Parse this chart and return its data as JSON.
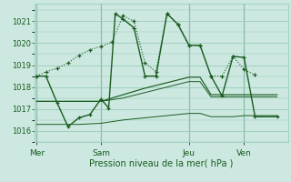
{
  "background_color": "#cce8e0",
  "grid_color": "#99ccbb",
  "line_color": "#1a5c20",
  "ylim": [
    1015.5,
    1021.8
  ],
  "yticks": [
    1016,
    1017,
    1018,
    1019,
    1020,
    1021
  ],
  "xlabel": "Pression niveau de la mer( hPa )",
  "day_labels": [
    "Mer",
    "Sam",
    "Jeu",
    "Ven"
  ],
  "day_positions": [
    0.08,
    3.0,
    7.0,
    9.5
  ],
  "xlim": [
    0.0,
    11.5
  ],
  "dotted_line": {
    "x": [
      0.08,
      0.5,
      1.0,
      1.5,
      2.0,
      2.5,
      3.0,
      3.5,
      4.0,
      4.5,
      5.0,
      5.5,
      6.0,
      6.5,
      7.0,
      7.5,
      8.0,
      8.5,
      9.0,
      9.5,
      10.0
    ],
    "y": [
      1018.5,
      1018.7,
      1018.85,
      1019.1,
      1019.45,
      1019.7,
      1019.85,
      1020.05,
      1021.25,
      1021.0,
      1019.1,
      1018.7,
      1021.35,
      1020.85,
      1019.9,
      1019.9,
      1018.5,
      1018.5,
      1019.4,
      1018.8,
      1018.55
    ]
  },
  "main_line": {
    "x": [
      0.08,
      0.5,
      1.0,
      1.5,
      2.0,
      2.5,
      3.0,
      3.35,
      3.65,
      4.0,
      4.5,
      5.0,
      5.5,
      6.0,
      6.5,
      7.0,
      7.5,
      8.0,
      8.5,
      9.0,
      9.5,
      10.0,
      11.0
    ],
    "y": [
      1018.5,
      1018.5,
      1017.3,
      1016.2,
      1016.6,
      1016.75,
      1017.45,
      1017.05,
      1021.35,
      1021.1,
      1020.7,
      1018.5,
      1018.5,
      1021.35,
      1020.85,
      1019.9,
      1019.9,
      1018.5,
      1017.6,
      1019.4,
      1019.35,
      1016.65,
      1016.65
    ]
  },
  "band_top": {
    "x": [
      0.08,
      1.0,
      2.0,
      3.0,
      4.0,
      5.0,
      6.0,
      7.0,
      7.5,
      8.0,
      8.5,
      9.0,
      9.5,
      10.0,
      11.0
    ],
    "y": [
      1017.35,
      1017.35,
      1017.35,
      1017.35,
      1017.65,
      1017.95,
      1018.2,
      1018.45,
      1018.45,
      1017.65,
      1017.65,
      1017.65,
      1017.65,
      1017.65,
      1017.65
    ]
  },
  "band_mid": {
    "x": [
      0.08,
      1.0,
      2.0,
      3.0,
      4.0,
      5.0,
      6.0,
      7.0,
      7.5,
      8.0,
      8.5,
      9.0,
      9.5,
      10.0,
      11.0
    ],
    "y": [
      1017.35,
      1017.35,
      1017.35,
      1017.35,
      1017.5,
      1017.75,
      1018.0,
      1018.25,
      1018.25,
      1017.55,
      1017.55,
      1017.55,
      1017.55,
      1017.55,
      1017.55
    ]
  },
  "band_bot": {
    "x": [
      0.08,
      1.0,
      2.0,
      3.0,
      4.0,
      5.0,
      6.0,
      7.0,
      7.5,
      8.0,
      8.5,
      9.0,
      9.5,
      10.0,
      11.0
    ],
    "y": [
      1016.3,
      1016.3,
      1016.3,
      1016.35,
      1016.5,
      1016.6,
      1016.7,
      1016.8,
      1016.8,
      1016.65,
      1016.65,
      1016.65,
      1016.7,
      1016.7,
      1016.7
    ]
  }
}
